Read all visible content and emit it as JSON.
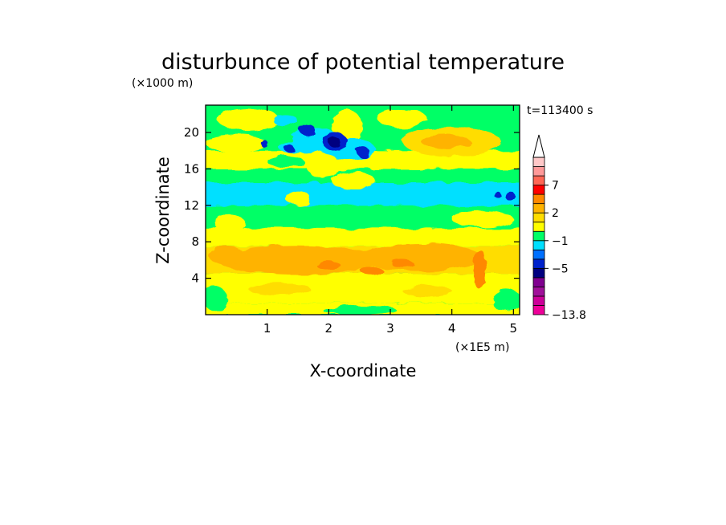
{
  "chart_data": {
    "type": "heatmap",
    "title": "disturbunce of potential temperature",
    "xlabel": "X-coordinate",
    "ylabel": "Z-coordinate",
    "x_unit": "(×1E5 m)",
    "y_unit": "(×1000 m)",
    "time_label": "t=113400 s",
    "xlim": [
      0,
      5.1
    ],
    "ylim": [
      0,
      23
    ],
    "x_ticks": [
      "1",
      "2",
      "3",
      "4",
      "5"
    ],
    "x_tick_values": [
      1,
      2,
      3,
      4,
      5
    ],
    "y_ticks": [
      "4",
      "8",
      "12",
      "16",
      "20"
    ],
    "y_tick_values": [
      4,
      8,
      12,
      16,
      20
    ],
    "colorbar": {
      "labels": [
        "7",
        "2",
        "−1",
        "−5",
        "−13.8"
      ],
      "label_values": [
        7,
        2,
        -1,
        -5,
        -13.8
      ],
      "colors": [
        "#ee0099",
        "#cc0099",
        "#a0109a",
        "#800090",
        "#000080",
        "#0022cc",
        "#0070ff",
        "#00e0ff",
        "#00ff66",
        "#ffff00",
        "#ffdd00",
        "#ffb300",
        "#ff8800",
        "#ff0000",
        "#ff6655",
        "#ff9999",
        "#ffc8c8"
      ]
    },
    "bands": [
      {
        "z0": 0,
        "z1": 1.3,
        "value": 0.5,
        "color": "#ffff00"
      },
      {
        "z0": 1.3,
        "z1": 4.5,
        "value": 1.0,
        "color": "#ffff00"
      },
      {
        "z0": 4.5,
        "z1": 7.5,
        "value": 1.5,
        "color": "#ffdd00"
      },
      {
        "z0": 7.5,
        "z1": 9.5,
        "value": 0.5,
        "color": "#ffff00"
      },
      {
        "z0": 9.5,
        "z1": 12.0,
        "value": 0.0,
        "color": "#00ff66"
      },
      {
        "z0": 12.0,
        "z1": 14.5,
        "value": -1.0,
        "color": "#00e0ff"
      },
      {
        "z0": 14.5,
        "z1": 16.0,
        "value": 0.0,
        "color": "#00ff66"
      },
      {
        "z0": 16.0,
        "z1": 18.0,
        "value": 0.5,
        "color": "#ffff00"
      },
      {
        "z0": 18.0,
        "z1": 23.0,
        "value": 0.0,
        "color": "#00ff66"
      }
    ],
    "features": [
      {
        "x": 0.7,
        "z": 21.4,
        "rx": 0.5,
        "rz": 1.2,
        "value": 0.5,
        "color": "#ffff00"
      },
      {
        "x": 2.3,
        "z": 20.5,
        "rx": 0.25,
        "rz": 2.0,
        "value": 0.5,
        "color": "#ffff00"
      },
      {
        "x": 3.2,
        "z": 21.5,
        "rx": 0.4,
        "rz": 1.0,
        "value": 0.5,
        "color": "#ffff00"
      },
      {
        "x": 4.0,
        "z": 19.0,
        "rx": 0.8,
        "rz": 1.6,
        "value": 1.5,
        "color": "#ffdd00"
      },
      {
        "x": 3.9,
        "z": 19.0,
        "rx": 0.4,
        "rz": 0.7,
        "value": 3.0,
        "color": "#ffb300"
      },
      {
        "x": 0.5,
        "z": 18.8,
        "rx": 0.5,
        "rz": 0.9,
        "value": 0.5,
        "color": "#ffff00"
      },
      {
        "x": 1.8,
        "z": 19.0,
        "rx": 0.4,
        "rz": 1.5,
        "value": -1.0,
        "color": "#00e0ff"
      },
      {
        "x": 2.3,
        "z": 18.2,
        "rx": 0.45,
        "rz": 1.2,
        "value": -1.0,
        "color": "#00e0ff"
      },
      {
        "x": 1.4,
        "z": 18.4,
        "rx": 0.22,
        "rz": 0.6,
        "value": -1.0,
        "color": "#00e0ff"
      },
      {
        "x": 1.65,
        "z": 20.3,
        "rx": 0.12,
        "rz": 0.7,
        "value": -5.0,
        "color": "#0022cc"
      },
      {
        "x": 2.1,
        "z": 19.0,
        "rx": 0.2,
        "rz": 1.0,
        "value": -5.0,
        "color": "#0022cc"
      },
      {
        "x": 2.1,
        "z": 18.9,
        "rx": 0.1,
        "rz": 0.55,
        "value": -8.0,
        "color": "#000080"
      },
      {
        "x": 1.35,
        "z": 18.3,
        "rx": 0.08,
        "rz": 0.4,
        "value": -5.0,
        "color": "#0022cc"
      },
      {
        "x": 0.95,
        "z": 18.8,
        "rx": 0.06,
        "rz": 0.4,
        "value": -5.0,
        "color": "#0022cc"
      },
      {
        "x": 2.55,
        "z": 17.9,
        "rx": 0.1,
        "rz": 0.6,
        "value": -5.0,
        "color": "#0022cc"
      },
      {
        "x": 1.3,
        "z": 21.3,
        "rx": 0.2,
        "rz": 0.6,
        "value": -1.0,
        "color": "#00e0ff"
      },
      {
        "x": 1.3,
        "z": 16.8,
        "rx": 0.3,
        "rz": 0.6,
        "value": 0.0,
        "color": "#00ff66"
      },
      {
        "x": 2.4,
        "z": 14.7,
        "rx": 0.35,
        "rz": 1.0,
        "value": 0.5,
        "color": "#ffff00"
      },
      {
        "x": 1.9,
        "z": 16.4,
        "rx": 0.25,
        "rz": 1.5,
        "value": 0.5,
        "color": "#ffff00"
      },
      {
        "x": 1.5,
        "z": 12.8,
        "rx": 0.2,
        "rz": 0.8,
        "value": 0.5,
        "color": "#ffff00"
      },
      {
        "x": 4.95,
        "z": 13.0,
        "rx": 0.08,
        "rz": 0.5,
        "value": -5.0,
        "color": "#0022cc"
      },
      {
        "x": 4.75,
        "z": 13.1,
        "rx": 0.05,
        "rz": 0.4,
        "value": -5.0,
        "color": "#0022cc"
      },
      {
        "x": 0.4,
        "z": 10.0,
        "rx": 0.25,
        "rz": 0.9,
        "value": 0.5,
        "color": "#ffff00"
      },
      {
        "x": 4.5,
        "z": 10.5,
        "rx": 0.5,
        "rz": 0.9,
        "value": 0.5,
        "color": "#ffff00"
      },
      {
        "x": 1.5,
        "z": 6.0,
        "rx": 1.3,
        "rz": 1.6,
        "value": 3.0,
        "color": "#ffb300"
      },
      {
        "x": 3.5,
        "z": 6.3,
        "rx": 1.0,
        "rz": 1.5,
        "value": 3.0,
        "color": "#ffb300"
      },
      {
        "x": 0.35,
        "z": 6.5,
        "rx": 0.3,
        "rz": 1.0,
        "value": 3.0,
        "color": "#ffb300"
      },
      {
        "x": 2.0,
        "z": 5.4,
        "rx": 0.2,
        "rz": 0.4,
        "value": 4.0,
        "color": "#ff8800"
      },
      {
        "x": 2.7,
        "z": 4.8,
        "rx": 0.18,
        "rz": 0.5,
        "value": 4.0,
        "color": "#ff8800"
      },
      {
        "x": 3.2,
        "z": 5.6,
        "rx": 0.18,
        "rz": 0.4,
        "value": 4.0,
        "color": "#ff8800"
      },
      {
        "x": 4.45,
        "z": 5.0,
        "rx": 0.1,
        "rz": 2.2,
        "value": 4.0,
        "color": "#ff8800"
      },
      {
        "x": 0.15,
        "z": 1.8,
        "rx": 0.2,
        "rz": 1.3,
        "value": 0.0,
        "color": "#00ff66"
      },
      {
        "x": 4.9,
        "z": 1.5,
        "rx": 0.25,
        "rz": 1.2,
        "value": 0.0,
        "color": "#00ff66"
      },
      {
        "x": 2.5,
        "z": 0.5,
        "rx": 0.6,
        "rz": 0.5,
        "value": 0.0,
        "color": "#00ff66"
      },
      {
        "x": 1.2,
        "z": 2.8,
        "rx": 0.5,
        "rz": 0.7,
        "value": 1.5,
        "color": "#ffdd00"
      },
      {
        "x": 3.6,
        "z": 2.6,
        "rx": 0.4,
        "rz": 0.6,
        "value": 1.5,
        "color": "#ffdd00"
      }
    ]
  }
}
